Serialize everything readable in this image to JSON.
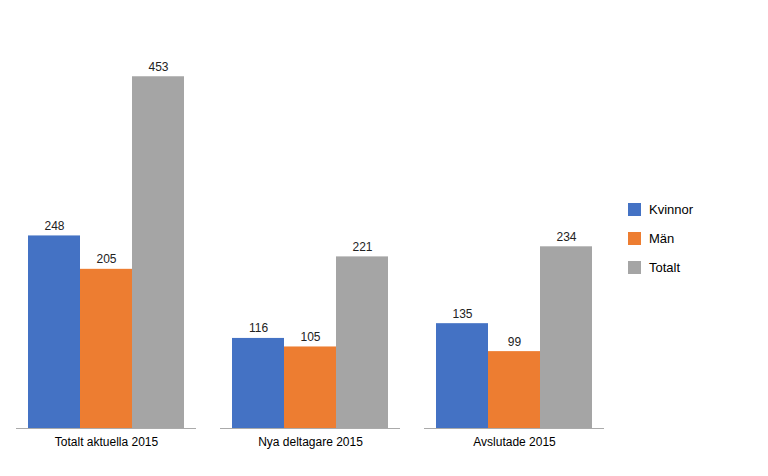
{
  "chart_data": {
    "type": "bar",
    "categories": [
      "Totalt aktuella 2015",
      "Nya deltagare 2015",
      "Avslutade 2015"
    ],
    "series": [
      {
        "name": "Kvinnor",
        "color": "#4472C4",
        "values": [
          248,
          116,
          135
        ]
      },
      {
        "name": "Män",
        "color": "#ED7D31",
        "values": [
          205,
          105,
          99
        ]
      },
      {
        "name": "Totalt",
        "color": "#A5A5A5",
        "values": [
          453,
          221,
          234
        ]
      }
    ],
    "ylim": [
      0,
      510
    ],
    "data_labels": true,
    "tick_labels": "x",
    "legend": "right",
    "grid": false
  }
}
